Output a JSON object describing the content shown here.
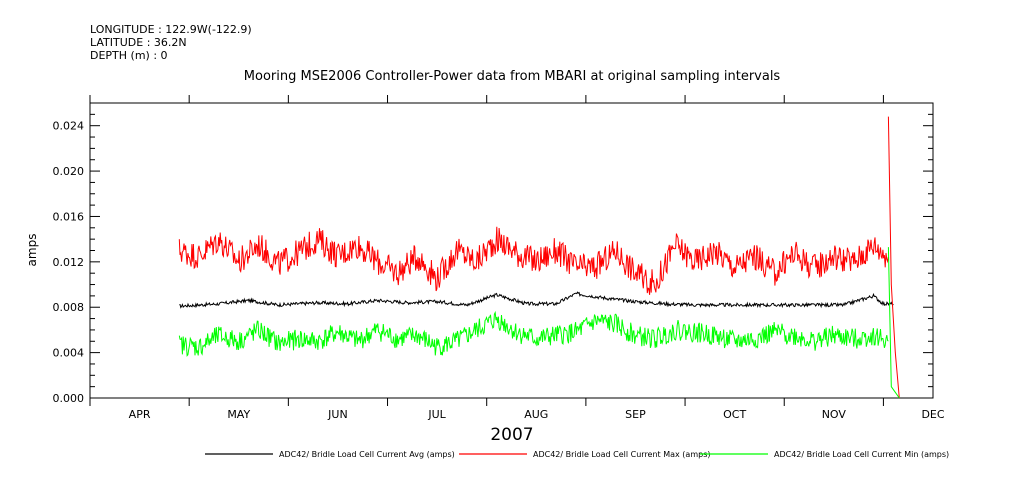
{
  "header": {
    "longitude": "LONGITUDE : 122.9W(-122.9)",
    "latitude": "LATITUDE : 36.2N",
    "depth": "DEPTH (m) : 0"
  },
  "chart_data": {
    "type": "line",
    "title": "Mooring MSE2006 Controller-Power data from MBARI at original sampling intervals",
    "ylabel": "amps",
    "xlabel": "2007",
    "ylim": [
      0.0,
      0.026
    ],
    "xlim": [
      0,
      8.5
    ],
    "yticks": [
      0.0,
      0.004,
      0.008,
      0.012,
      0.016,
      0.02,
      0.024
    ],
    "ytick_labels": [
      "0.000",
      "0.004",
      "0.008",
      "0.012",
      "0.016",
      "0.020",
      "0.024"
    ],
    "month_labels": [
      "APR",
      "MAY",
      "JUN",
      "JUL",
      "AUG",
      "SEP",
      "OCT",
      "NOV",
      "DEC"
    ],
    "series": [
      {
        "name": "ADC42/ Bridle Load Cell Current Avg (amps)",
        "color": "#000000",
        "x": [
          0.9,
          1.3,
          1.6,
          1.9,
          2.3,
          2.6,
          2.9,
          3.2,
          3.5,
          3.8,
          4.1,
          4.4,
          4.7,
          4.9,
          5.2,
          5.5,
          5.8,
          6.1,
          6.4,
          6.7,
          7.0,
          7.3,
          7.6,
          7.9,
          8.0,
          8.1
        ],
        "y": [
          0.0081,
          0.0083,
          0.0086,
          0.0082,
          0.0084,
          0.0083,
          0.0086,
          0.0084,
          0.0085,
          0.0082,
          0.0091,
          0.0083,
          0.0083,
          0.0092,
          0.0088,
          0.0085,
          0.0083,
          0.0082,
          0.0082,
          0.0082,
          0.0082,
          0.0082,
          0.0082,
          0.009,
          0.0083,
          0.0083
        ]
      },
      {
        "name": "ADC42/ Bridle Load Cell Current Max (amps)",
        "color": "#ff0000",
        "x": [
          0.9,
          1.1,
          1.3,
          1.5,
          1.7,
          1.9,
          2.1,
          2.3,
          2.5,
          2.7,
          2.9,
          3.1,
          3.3,
          3.5,
          3.7,
          3.9,
          4.1,
          4.3,
          4.5,
          4.7,
          4.9,
          5.1,
          5.3,
          5.5,
          5.7,
          5.9,
          6.1,
          6.3,
          6.5,
          6.7,
          6.9,
          7.1,
          7.3,
          7.5,
          7.7,
          7.9,
          8.05
        ],
        "y": [
          0.013,
          0.0125,
          0.014,
          0.012,
          0.0135,
          0.0118,
          0.0128,
          0.014,
          0.0125,
          0.0135,
          0.012,
          0.011,
          0.0125,
          0.0105,
          0.013,
          0.012,
          0.014,
          0.0128,
          0.012,
          0.013,
          0.0115,
          0.0115,
          0.013,
          0.011,
          0.01,
          0.0135,
          0.012,
          0.013,
          0.0115,
          0.0125,
          0.011,
          0.0128,
          0.0115,
          0.0125,
          0.012,
          0.0135,
          0.0125
        ]
      },
      {
        "name": "ADC42/ Bridle Load Cell Current Min (amps)",
        "color": "#00ff00",
        "x": [
          0.9,
          1.1,
          1.3,
          1.5,
          1.7,
          1.9,
          2.1,
          2.3,
          2.5,
          2.7,
          2.9,
          3.1,
          3.3,
          3.5,
          3.7,
          3.9,
          4.1,
          4.3,
          4.5,
          4.7,
          4.9,
          5.1,
          5.3,
          5.5,
          5.7,
          5.9,
          6.1,
          6.3,
          6.5,
          6.7,
          6.9,
          7.1,
          7.3,
          7.5,
          7.7,
          7.9,
          8.05
        ],
        "y": [
          0.0047,
          0.0045,
          0.0055,
          0.005,
          0.006,
          0.0048,
          0.0052,
          0.005,
          0.0058,
          0.005,
          0.006,
          0.0052,
          0.0055,
          0.0045,
          0.005,
          0.006,
          0.007,
          0.0058,
          0.0052,
          0.0055,
          0.0058,
          0.0068,
          0.0065,
          0.0055,
          0.0052,
          0.006,
          0.0058,
          0.0055,
          0.005,
          0.0052,
          0.0058,
          0.0055,
          0.005,
          0.0055,
          0.0052,
          0.0055,
          0.005
        ]
      }
    ],
    "spikes": {
      "max": {
        "x": [
          8.05,
          8.08,
          8.12,
          8.16
        ],
        "y": [
          0.0248,
          0.01,
          0.004,
          0.0
        ]
      },
      "min": {
        "x": [
          8.05,
          8.08,
          8.12,
          8.16
        ],
        "y": [
          0.0133,
          0.001,
          0.0005,
          0.0
        ]
      }
    },
    "legend_placement": "bottom"
  }
}
